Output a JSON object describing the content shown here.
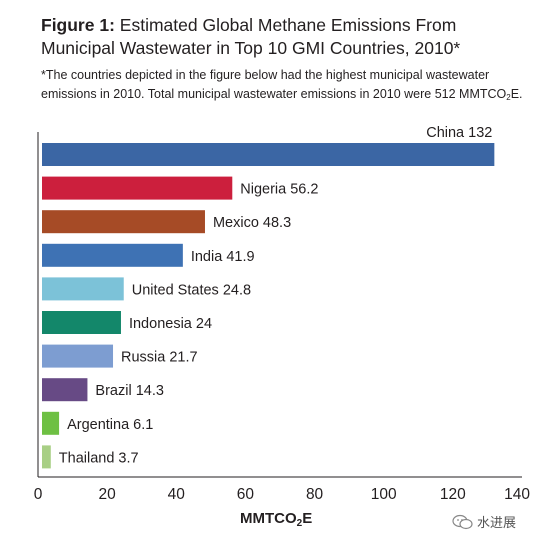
{
  "header": {
    "figure_label": "Figure 1:",
    "title": "Estimated Global Methane Emissions From Municipal Wastewater in Top 10 GMI Countries, 2010*",
    "note_main": "*The countries depicted in the figure below had the highest municipal wastewater emissions in 2010. Total municipal wastewater emissions in 2010 were 512 MMTCO",
    "note_sub": "2",
    "note_end": "E."
  },
  "axis": {
    "xlabel_main": "MMTCO",
    "xlabel_sub": "2",
    "xlabel_end": "E"
  },
  "watermark": {
    "text": "水进展"
  },
  "chart_data": {
    "type": "bar",
    "orientation": "horizontal",
    "categories": [
      "China",
      "Nigeria",
      "Mexico",
      "India",
      "United States",
      "Indonesia",
      "Russia",
      "Brazil",
      "Argentina",
      "Thailand"
    ],
    "values": [
      132,
      56.2,
      48.3,
      41.9,
      24.8,
      24,
      21.7,
      14.3,
      6.1,
      3.7
    ],
    "data_labels": [
      "China 132",
      "Nigeria 56.2",
      "Mexico 48.3",
      "India 41.9",
      "United States 24.8",
      "Indonesia 24",
      "Russia 21.7",
      "Brazil 14.3",
      "Argentina 6.1",
      "Thailand 3.7"
    ],
    "colors": [
      "#3b66a4",
      "#cc1f3d",
      "#a64b26",
      "#3e72b4",
      "#7cc2d8",
      "#13876a",
      "#7d9dd1",
      "#674a85",
      "#6ec043",
      "#a8cf85"
    ],
    "xlim": [
      0,
      140
    ],
    "xticks": [
      0,
      20,
      40,
      60,
      80,
      100,
      120,
      140
    ],
    "grid": false
  }
}
